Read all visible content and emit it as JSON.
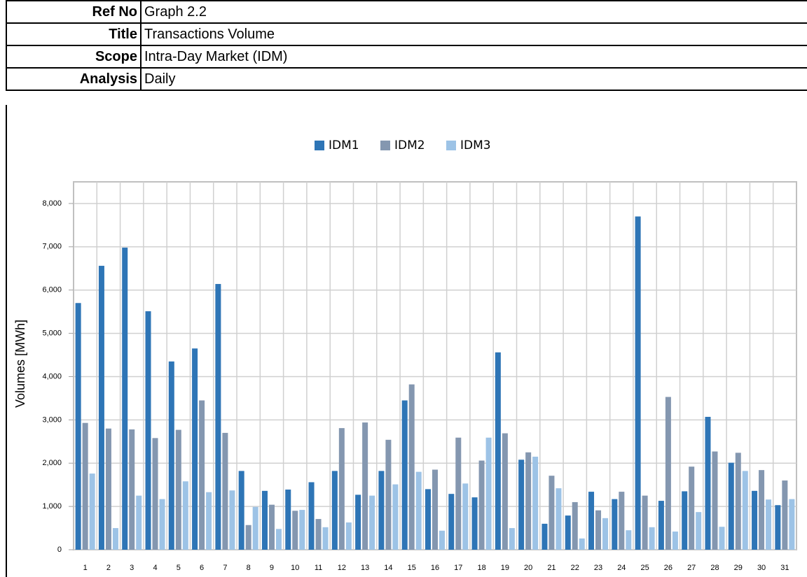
{
  "header": {
    "rows": [
      {
        "label": "Ref No",
        "value": "Graph 2.2"
      },
      {
        "label": "Title",
        "value": "Transactions Volume"
      },
      {
        "label": "Scope",
        "value": "Intra-Day Market (IDM)"
      },
      {
        "label": "Analysis",
        "value": "Daily"
      }
    ]
  },
  "chart_data": {
    "type": "bar",
    "y_label": "Volumes [MWh]",
    "categories": [
      "1",
      "2",
      "3",
      "4",
      "5",
      "6",
      "7",
      "8",
      "9",
      "10",
      "11",
      "12",
      "13",
      "14",
      "15",
      "16",
      "17",
      "18",
      "19",
      "20",
      "21",
      "22",
      "23",
      "24",
      "25",
      "26",
      "27",
      "28",
      "29",
      "30",
      "31"
    ],
    "series": [
      {
        "name": "IDM1",
        "color": "#2e75b6",
        "values": [
          5700,
          6560,
          6980,
          5510,
          4350,
          4650,
          6140,
          1820,
          1360,
          1390,
          1560,
          1820,
          1270,
          1820,
          3450,
          1400,
          1290,
          1210,
          4560,
          2080,
          600,
          790,
          1340,
          1170,
          7700,
          1130,
          1350,
          3070,
          2010,
          1360,
          1030
        ]
      },
      {
        "name": "IDM2",
        "color": "#8497b0",
        "values": [
          2930,
          2800,
          2780,
          2580,
          2770,
          3450,
          2700,
          570,
          1040,
          900,
          710,
          2810,
          2940,
          2540,
          3820,
          1850,
          2590,
          2060,
          2690,
          2250,
          1710,
          1100,
          910,
          1340,
          1250,
          3530,
          1920,
          2270,
          2240,
          1840,
          1600
        ]
      },
      {
        "name": "IDM3",
        "color": "#9dc3e6",
        "values": [
          1760,
          500,
          1250,
          1170,
          1580,
          1330,
          1370,
          990,
          480,
          920,
          520,
          630,
          1250,
          1510,
          1800,
          440,
          1530,
          2590,
          500,
          2150,
          1420,
          260,
          730,
          450,
          520,
          420,
          870,
          530,
          1820,
          1160,
          1170
        ]
      }
    ],
    "ylim": [
      0,
      8500
    ],
    "yticks": [
      0,
      {
        "value": 1000,
        "label": "1,000"
      },
      {
        "value": 2000,
        "label": "2,000"
      },
      {
        "value": 3000,
        "label": "3,000"
      },
      {
        "value": 4000,
        "label": "4,000"
      },
      {
        "value": 5000,
        "label": "5,000"
      },
      {
        "value": 6000,
        "label": "6,000"
      },
      {
        "value": 7000,
        "label": "7,000"
      },
      {
        "value": 8000,
        "label": "8,000"
      }
    ],
    "grid": true,
    "legend": "top"
  }
}
